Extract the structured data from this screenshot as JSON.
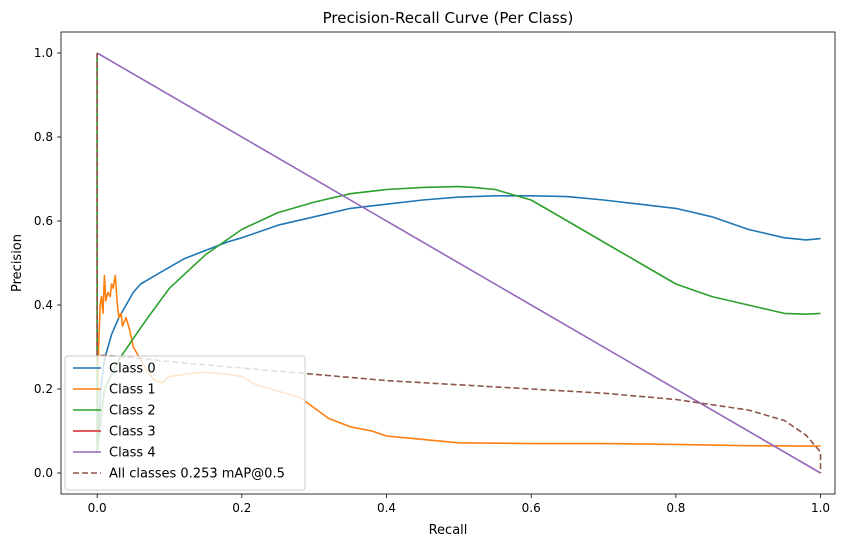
{
  "chart_data": {
    "type": "line",
    "title": "Precision-Recall Curve (Per Class)",
    "xlabel": "Recall",
    "ylabel": "Precision",
    "xlim": [
      -0.05,
      1.02
    ],
    "ylim": [
      -0.05,
      1.05
    ],
    "xticks": [
      "0.0",
      "0.2",
      "0.4",
      "0.6",
      "0.8",
      "1.0"
    ],
    "yticks": [
      "0.0",
      "0.2",
      "0.4",
      "0.6",
      "0.8",
      "1.0"
    ],
    "grid": false,
    "legend_position": "lower-left",
    "series": [
      {
        "name": "Class 0",
        "color": "#1f77b4",
        "dash": "solid",
        "x": [
          0.0,
          0.0,
          0.005,
          0.01,
          0.02,
          0.03,
          0.04,
          0.05,
          0.06,
          0.07,
          0.08,
          0.1,
          0.12,
          0.15,
          0.18,
          0.2,
          0.25,
          0.3,
          0.35,
          0.4,
          0.45,
          0.5,
          0.55,
          0.6,
          0.65,
          0.7,
          0.75,
          0.8,
          0.85,
          0.9,
          0.95,
          0.98,
          1.0
        ],
        "y": [
          1.0,
          0.05,
          0.2,
          0.27,
          0.33,
          0.37,
          0.4,
          0.43,
          0.45,
          0.46,
          0.47,
          0.49,
          0.51,
          0.53,
          0.55,
          0.56,
          0.59,
          0.61,
          0.63,
          0.64,
          0.65,
          0.657,
          0.66,
          0.66,
          0.658,
          0.65,
          0.64,
          0.63,
          0.61,
          0.58,
          0.56,
          0.555,
          0.558
        ]
      },
      {
        "name": "Class 1",
        "color": "#ff7f0e",
        "dash": "solid",
        "x": [
          0.0,
          0.0,
          0.002,
          0.004,
          0.006,
          0.008,
          0.01,
          0.012,
          0.015,
          0.018,
          0.02,
          0.022,
          0.025,
          0.028,
          0.03,
          0.033,
          0.035,
          0.04,
          0.045,
          0.05,
          0.06,
          0.07,
          0.08,
          0.09,
          0.1,
          0.12,
          0.15,
          0.18,
          0.2,
          0.22,
          0.25,
          0.28,
          0.3,
          0.32,
          0.35,
          0.38,
          0.4,
          0.45,
          0.5,
          0.6,
          0.7,
          0.8,
          0.9,
          1.0
        ],
        "y": [
          1.0,
          0.05,
          0.3,
          0.4,
          0.42,
          0.38,
          0.47,
          0.41,
          0.43,
          0.42,
          0.45,
          0.44,
          0.47,
          0.4,
          0.37,
          0.38,
          0.35,
          0.37,
          0.34,
          0.3,
          0.27,
          0.24,
          0.22,
          0.215,
          0.23,
          0.235,
          0.24,
          0.235,
          0.23,
          0.21,
          0.195,
          0.18,
          0.155,
          0.13,
          0.11,
          0.1,
          0.088,
          0.08,
          0.072,
          0.07,
          0.07,
          0.068,
          0.065,
          0.064
        ]
      },
      {
        "name": "Class 2",
        "color": "#2ca02c",
        "dash": "solid",
        "x": [
          0.0,
          0.0,
          0.01,
          0.03,
          0.05,
          0.07,
          0.1,
          0.15,
          0.2,
          0.25,
          0.3,
          0.35,
          0.4,
          0.45,
          0.5,
          0.52,
          0.55,
          0.6,
          0.65,
          0.7,
          0.75,
          0.8,
          0.85,
          0.9,
          0.95,
          0.98,
          1.0
        ],
        "y": [
          1.0,
          0.05,
          0.2,
          0.27,
          0.32,
          0.37,
          0.44,
          0.52,
          0.58,
          0.62,
          0.645,
          0.665,
          0.675,
          0.68,
          0.682,
          0.68,
          0.675,
          0.65,
          0.6,
          0.55,
          0.5,
          0.45,
          0.42,
          0.4,
          0.38,
          0.378,
          0.38
        ]
      },
      {
        "name": "Class 3",
        "color": "#d62728",
        "dash": "solid",
        "x": [
          0.0,
          0.0
        ],
        "y": [
          0.0,
          0.0
        ]
      },
      {
        "name": "Class 4",
        "color": "#9467bd",
        "dash": "solid",
        "x": [
          0.0,
          1.0
        ],
        "y": [
          1.0,
          0.0
        ]
      },
      {
        "name": "All classes 0.253 mAP@0.5",
        "color": "#8c564b",
        "dash": "dashed",
        "x": [
          0.0,
          0.0,
          0.01,
          0.05,
          0.1,
          0.2,
          0.3,
          0.4,
          0.5,
          0.6,
          0.7,
          0.8,
          0.9,
          0.95,
          0.98,
          1.0,
          1.0
        ],
        "y": [
          1.0,
          0.28,
          0.28,
          0.275,
          0.265,
          0.25,
          0.235,
          0.22,
          0.21,
          0.2,
          0.19,
          0.175,
          0.15,
          0.125,
          0.09,
          0.05,
          0.0
        ]
      }
    ]
  }
}
